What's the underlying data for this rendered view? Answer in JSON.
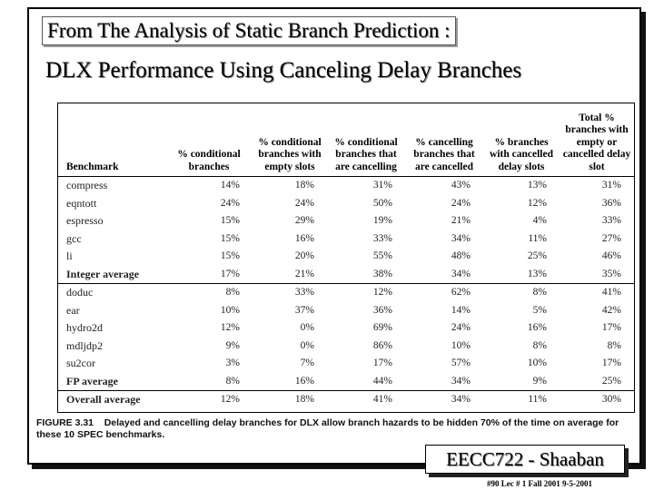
{
  "slide": {
    "title_line1": "From The Analysis of Static Branch Prediction :",
    "title_line2": "DLX Performance Using Canceling Delay Branches"
  },
  "table": {
    "headers": [
      "Benchmark",
      "% conditional branches",
      "% conditional branches with empty slots",
      "% conditional branches that are cancelling",
      "% cancelling branches that are cancelled",
      "% branches with cancelled delay slots",
      "Total % branches with empty or cancelled delay slot"
    ],
    "rows": [
      {
        "name": "compress",
        "values": [
          "14%",
          "18%",
          "31%",
          "43%",
          "13%",
          "31%"
        ]
      },
      {
        "name": "eqntott",
        "values": [
          "24%",
          "24%",
          "50%",
          "24%",
          "12%",
          "36%"
        ]
      },
      {
        "name": "espresso",
        "values": [
          "15%",
          "29%",
          "19%",
          "21%",
          "4%",
          "33%"
        ]
      },
      {
        "name": "gcc",
        "values": [
          "15%",
          "16%",
          "33%",
          "34%",
          "11%",
          "27%"
        ]
      },
      {
        "name": "li",
        "values": [
          "15%",
          "20%",
          "55%",
          "48%",
          "25%",
          "46%"
        ]
      },
      {
        "name": "Integer average",
        "values": [
          "17%",
          "21%",
          "38%",
          "34%",
          "13%",
          "35%"
        ]
      },
      {
        "name": "doduc",
        "values": [
          "8%",
          "33%",
          "12%",
          "62%",
          "8%",
          "41%"
        ]
      },
      {
        "name": "ear",
        "values": [
          "10%",
          "37%",
          "36%",
          "14%",
          "5%",
          "42%"
        ]
      },
      {
        "name": "hydro2d",
        "values": [
          "12%",
          "0%",
          "69%",
          "24%",
          "16%",
          "17%"
        ]
      },
      {
        "name": "mdljdp2",
        "values": [
          "9%",
          "0%",
          "86%",
          "10%",
          "8%",
          "8%"
        ]
      },
      {
        "name": "su2cor",
        "values": [
          "3%",
          "7%",
          "17%",
          "57%",
          "10%",
          "17%"
        ]
      },
      {
        "name": "FP average",
        "values": [
          "8%",
          "16%",
          "44%",
          "34%",
          "9%",
          "25%"
        ]
      },
      {
        "name": "Overall average",
        "values": [
          "12%",
          "18%",
          "41%",
          "34%",
          "11%",
          "30%"
        ]
      }
    ]
  },
  "caption": {
    "label": "FIGURE 3.31",
    "text": "Delayed and cancelling delay branches for DLX allow branch hazards to be hidden 70% of the time on average for these 10 SPEC benchmarks."
  },
  "footer": {
    "course": "EECC722 - Shaaban",
    "meta": "#90   Lec # 1   Fall 2001  9-5-2001"
  }
}
